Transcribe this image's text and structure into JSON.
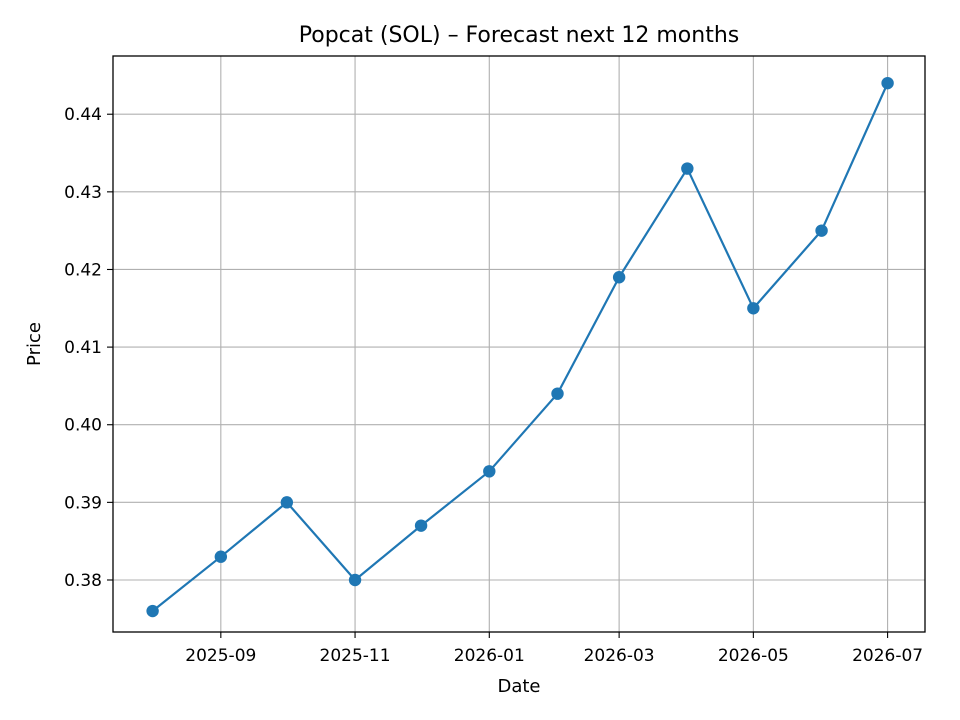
{
  "chart_data": {
    "type": "line",
    "title": "Popcat (SOL) – Forecast next 12 months",
    "xlabel": "Date",
    "ylabel": "Price",
    "x_type": "date",
    "x_tick_labels": [
      "2025-09",
      "2025-11",
      "2026-01",
      "2026-03",
      "2026-05",
      "2026-07"
    ],
    "x_ticks": [
      "2025-09-01",
      "2025-11-01",
      "2026-01-01",
      "2026-03-01",
      "2026-05-01",
      "2026-07-01"
    ],
    "y_ticks": [
      0.38,
      0.39,
      0.4,
      0.41,
      0.42,
      0.43,
      0.44
    ],
    "y_tick_labels": [
      "0.38",
      "0.39",
      "0.40",
      "0.41",
      "0.42",
      "0.43",
      "0.44"
    ],
    "xlim": [
      "2025-07-14",
      "2026-07-18"
    ],
    "ylim": [
      0.3733,
      0.4475
    ],
    "grid": true,
    "series": [
      {
        "color": "#1f77b4",
        "marker": "circle",
        "x": [
          "2025-08-01",
          "2025-09-01",
          "2025-10-01",
          "2025-11-01",
          "2025-12-01",
          "2026-01-01",
          "2026-02-01",
          "2026-03-01",
          "2026-04-01",
          "2026-05-01",
          "2026-06-01",
          "2026-07-01"
        ],
        "y": [
          0.376,
          0.383,
          0.39,
          0.38,
          0.387,
          0.394,
          0.404,
          0.419,
          0.433,
          0.415,
          0.425,
          0.444
        ]
      }
    ]
  }
}
